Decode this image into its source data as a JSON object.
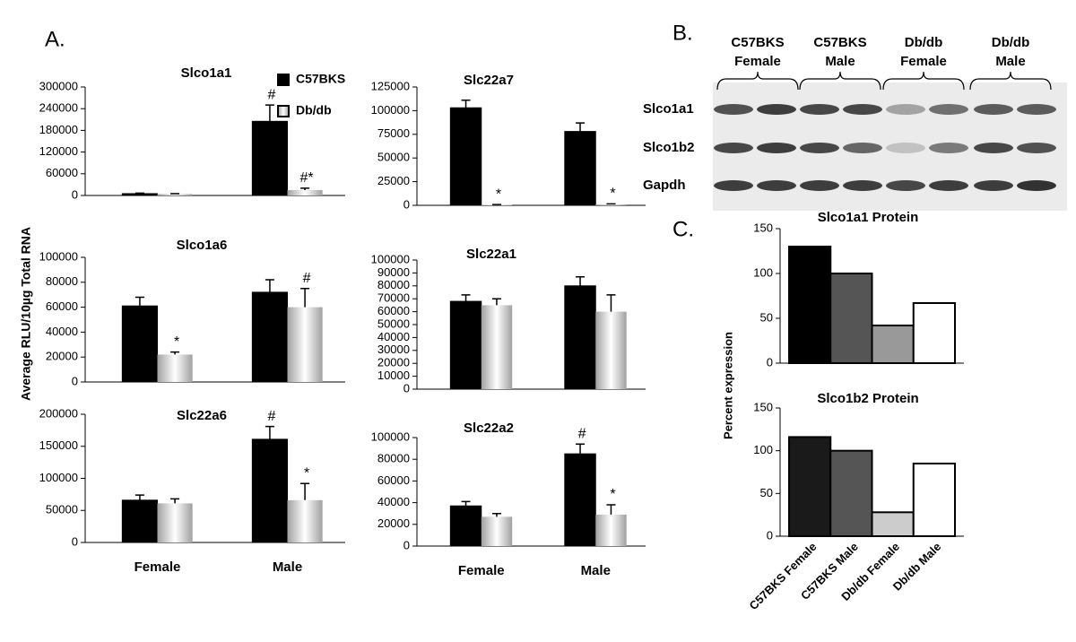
{
  "panel_labels": [
    "A.",
    "B.",
    "C."
  ],
  "panel_a_ylabel": "Average RLU/10µg Total RNA",
  "panel_c_ylabel": "Percent expression",
  "blot": {
    "groups": [
      [
        "C57BKS",
        "Female"
      ],
      [
        "C57BKS",
        "Male"
      ],
      [
        "Db/db",
        "Female"
      ],
      [
        "Db/db",
        "Male"
      ]
    ],
    "rows": [
      "Slco1a1",
      "Slco1b2",
      "Gapdh"
    ]
  },
  "chart_data": [
    {
      "type": "bar",
      "title": "Slco1a1",
      "categories": [
        null,
        null
      ],
      "legend": "upper right",
      "ylim": [
        0,
        300000
      ],
      "yticks": [
        0,
        60000,
        120000,
        180000,
        240000,
        300000
      ],
      "series": [
        {
          "name": "C57BKS",
          "color": "#000000",
          "values": [
            5000,
            205000
          ],
          "errors": [
            1500,
            45000
          ],
          "markers": [
            null,
            "#"
          ]
        },
        {
          "name": "Db/db",
          "color": "#a0a0a0",
          "fill_style": "gradient",
          "values": [
            4000,
            15000
          ],
          "errors": [
            1000,
            5000
          ],
          "markers": [
            null,
            "#*"
          ]
        }
      ]
    },
    {
      "type": "bar",
      "title": "Slc22a7",
      "categories": [
        null,
        null
      ],
      "ylim": [
        0,
        125000
      ],
      "yticks": [
        0,
        25000,
        50000,
        75000,
        100000,
        125000
      ],
      "series": [
        {
          "name": "C57BKS",
          "color": "#000000",
          "values": [
            103000,
            78000
          ],
          "errors": [
            8000,
            9000
          ],
          "markers": [
            null,
            null
          ]
        },
        {
          "name": "Db/db",
          "color": "#a0a0a0",
          "fill_style": "gradient",
          "values": [
            500,
            1000
          ],
          "errors": [
            300,
            500
          ],
          "markers": [
            "*",
            "*"
          ]
        }
      ]
    },
    {
      "type": "bar",
      "title": "Slco1a6",
      "categories": [
        null,
        null
      ],
      "ylim": [
        0,
        100000
      ],
      "yticks": [
        0,
        20000,
        40000,
        60000,
        80000,
        100000
      ],
      "series": [
        {
          "name": "C57BKS",
          "color": "#000000",
          "values": [
            61000,
            72000
          ],
          "errors": [
            7000,
            10000
          ],
          "markers": [
            null,
            null
          ]
        },
        {
          "name": "Db/db",
          "color": "#a0a0a0",
          "fill_style": "gradient",
          "values": [
            22000,
            60000
          ],
          "errors": [
            2000,
            15000
          ],
          "markers": [
            "*",
            "#"
          ]
        }
      ]
    },
    {
      "type": "bar",
      "title": "Slc22a1",
      "categories": [
        null,
        null
      ],
      "ylim": [
        0,
        100000
      ],
      "yticks": [
        0,
        10000,
        20000,
        30000,
        40000,
        50000,
        60000,
        70000,
        80000,
        90000,
        100000
      ],
      "series": [
        {
          "name": "C57BKS",
          "color": "#000000",
          "values": [
            68000,
            80000
          ],
          "errors": [
            5000,
            7000
          ],
          "markers": [
            null,
            null
          ]
        },
        {
          "name": "Db/db",
          "color": "#a0a0a0",
          "fill_style": "gradient",
          "values": [
            65000,
            60000
          ],
          "errors": [
            5000,
            13000
          ],
          "markers": [
            null,
            null
          ]
        }
      ]
    },
    {
      "type": "bar",
      "title": "Slc22a6",
      "categories": [
        "Female",
        "Male"
      ],
      "ylim": [
        0,
        200000
      ],
      "yticks": [
        0,
        50000,
        100000,
        150000,
        200000
      ],
      "series": [
        {
          "name": "C57BKS",
          "color": "#000000",
          "values": [
            66000,
            161000
          ],
          "errors": [
            8000,
            20000
          ],
          "markers": [
            null,
            "#"
          ]
        },
        {
          "name": "Db/db",
          "color": "#a0a0a0",
          "fill_style": "gradient",
          "values": [
            61000,
            66000
          ],
          "errors": [
            7000,
            26000
          ],
          "markers": [
            null,
            "*"
          ]
        }
      ]
    },
    {
      "type": "bar",
      "title": "Slc22a2",
      "categories": [
        "Female",
        "Male"
      ],
      "ylim": [
        0,
        100000
      ],
      "yticks": [
        0,
        20000,
        40000,
        60000,
        80000,
        100000
      ],
      "series": [
        {
          "name": "C57BKS",
          "color": "#000000",
          "values": [
            37000,
            85000
          ],
          "errors": [
            4000,
            9000
          ],
          "markers": [
            null,
            "#"
          ]
        },
        {
          "name": "Db/db",
          "color": "#a0a0a0",
          "fill_style": "gradient",
          "values": [
            27000,
            29000
          ],
          "errors": [
            3000,
            9000
          ],
          "markers": [
            null,
            "*"
          ]
        }
      ]
    },
    {
      "type": "bar",
      "title": "Slco1a1 Protein",
      "categories": [
        null,
        null,
        null,
        null
      ],
      "ylim": [
        0,
        150
      ],
      "yticks": [
        0,
        50,
        100,
        150
      ],
      "values": [
        130,
        100,
        42,
        67
      ],
      "colors": [
        "#000000",
        "#555555",
        "#999999",
        "#ffffff"
      ]
    },
    {
      "type": "bar",
      "title": "Slco1b2 Protein",
      "categories": [
        "C57BKS Female",
        "C57BKS Male",
        "Db/db Female",
        "Db/db Male"
      ],
      "ylim": [
        0,
        150
      ],
      "yticks": [
        0,
        50,
        100,
        150
      ],
      "values": [
        116,
        100,
        28,
        85
      ],
      "colors": [
        "#1a1a1a",
        "#555555",
        "#cccccc",
        "#ffffff"
      ]
    }
  ]
}
